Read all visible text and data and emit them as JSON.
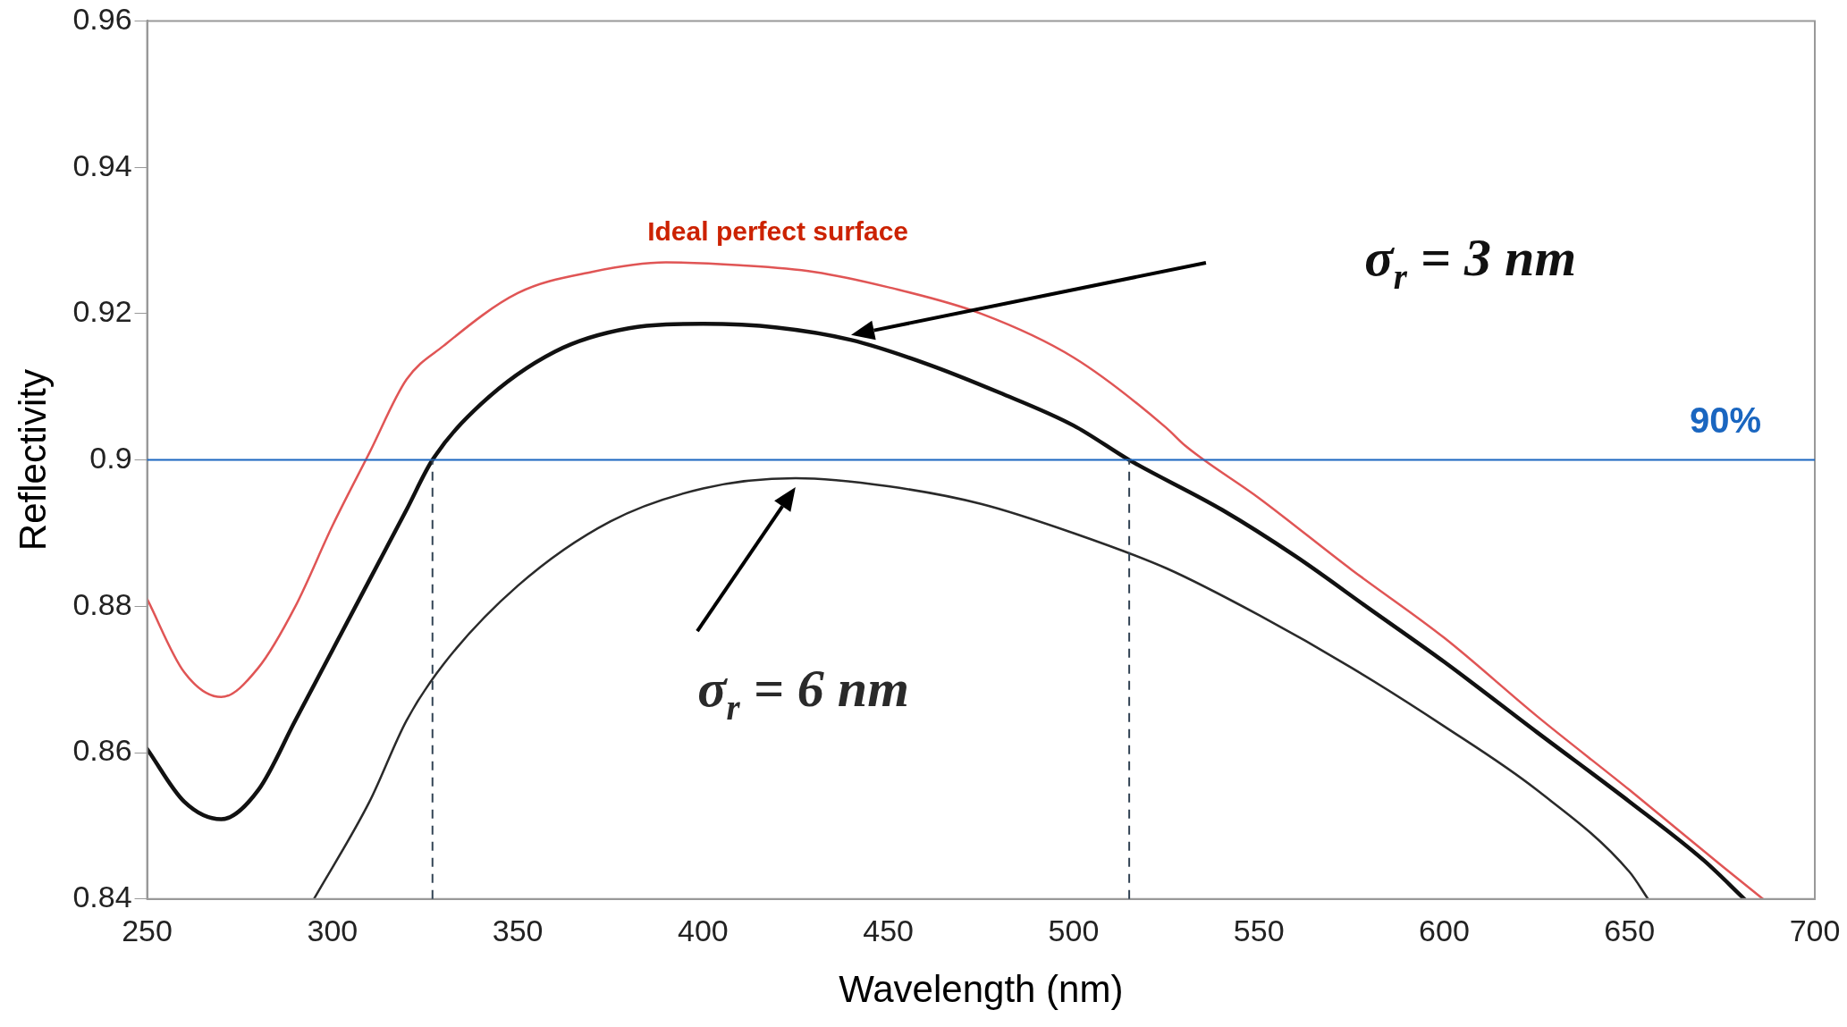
{
  "chart_data": {
    "type": "line",
    "xlabel": "Wavelength (nm)",
    "ylabel": "Reflectivity",
    "xlim": [
      250,
      700
    ],
    "xticks": [
      250,
      300,
      350,
      400,
      450,
      500,
      550,
      600,
      650,
      700
    ],
    "ylim": [
      0.84,
      0.96
    ],
    "yticks": [
      0.84,
      0.86,
      0.88,
      0.9,
      0.92,
      0.94,
      0.96
    ],
    "grid": false,
    "legend": false,
    "marker": "none",
    "line_style": "solid",
    "series": [
      {
        "name": "Ideal perfect surface",
        "color": "#e05555",
        "x": [
          250,
          260,
          270,
          280,
          290,
          300,
          310,
          320,
          330,
          350,
          370,
          390,
          410,
          430,
          450,
          475,
          500,
          525,
          530,
          550,
          575,
          600,
          625,
          650,
          675,
          686
        ],
        "values": [
          0.881,
          0.871,
          0.8676,
          0.8716,
          0.88,
          0.891,
          0.901,
          0.911,
          0.9156,
          0.9228,
          0.9257,
          0.927,
          0.9266,
          0.9257,
          0.9236,
          0.92,
          0.914,
          0.9044,
          0.902,
          0.8948,
          0.885,
          0.8757,
          0.865,
          0.8549,
          0.8445,
          0.84
        ]
      },
      {
        "name": "σ$_{r}$ = 3 nm",
        "color": "#111111",
        "x": [
          250,
          260,
          270,
          280,
          290,
          300,
          310,
          320,
          327,
          340,
          360,
          380,
          400,
          420,
          440,
          460,
          480,
          500,
          515,
          540,
          560,
          580,
          600,
          625,
          650,
          670,
          681
        ],
        "values": [
          0.8605,
          0.8533,
          0.8509,
          0.8549,
          0.8644,
          0.874,
          0.8836,
          0.8932,
          0.9,
          0.9076,
          0.9148,
          0.918,
          0.9186,
          0.9181,
          0.9164,
          0.9132,
          0.9092,
          0.9047,
          0.9,
          0.8932,
          0.8868,
          0.8796,
          0.8724,
          0.8628,
          0.8533,
          0.8453,
          0.84
        ]
      },
      {
        "name": "σ$_{r}$ = 6 nm",
        "color": "#2a2a2a",
        "x": [
          295,
          310,
          320,
          330,
          350,
          375,
          400,
          425,
          450,
          475,
          500,
          525,
          550,
          575,
          600,
          625,
          650,
          655
        ],
        "values": [
          0.84,
          0.8533,
          0.8644,
          0.8721,
          0.8828,
          0.8916,
          0.8961,
          0.8975,
          0.8964,
          0.894,
          0.89,
          0.8852,
          0.8788,
          0.8716,
          0.8636,
          0.8549,
          0.8437,
          0.84
        ]
      }
    ],
    "ref_lines": [
      {
        "axis": "y",
        "value": 0.9,
        "label": "90%",
        "color": "#1a66c0",
        "line_style": "solid"
      },
      {
        "axis": "x",
        "value": 327,
        "color": "#334455",
        "line_style": "dashed"
      },
      {
        "axis": "x",
        "value": 515,
        "color": "#334455",
        "line_style": "dashed"
      }
    ]
  }
}
